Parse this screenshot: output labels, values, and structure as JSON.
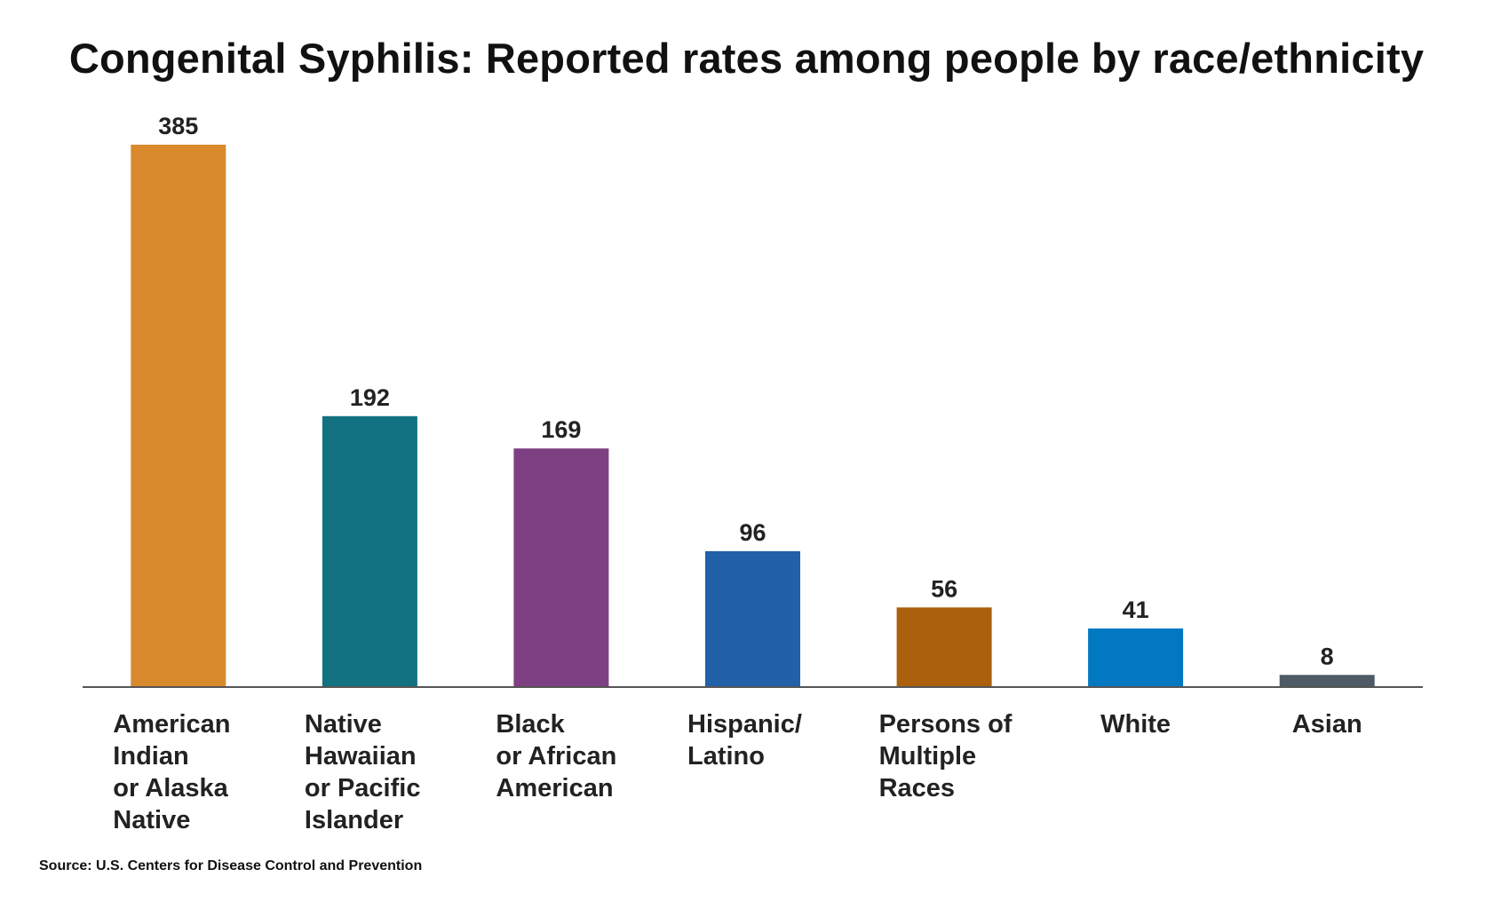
{
  "chart_data": {
    "type": "bar",
    "title": "Congenital Syphilis: Reported rates among people by race/ethnicity",
    "xlabel": "",
    "ylabel": "",
    "categories": [
      "American Indian or Alaska Native",
      "Native Hawaiian or Pacific Islander",
      "Black or African American",
      "Hispanic/ Latino",
      "Persons of Multiple Races",
      "White",
      "Asian"
    ],
    "category_lines": [
      [
        "American",
        "Indian",
        "or Alaska",
        "Native"
      ],
      [
        "Native",
        "Hawaiian",
        "or Pacific",
        "Islander"
      ],
      [
        "Black",
        "or African",
        "American"
      ],
      [
        "Hispanic/",
        "Latino"
      ],
      [
        "Persons of",
        "Multiple",
        "Races"
      ],
      [
        "White"
      ],
      [
        "Asian"
      ]
    ],
    "values": [
      385,
      192,
      169,
      96,
      56,
      41,
      8
    ],
    "colors": [
      "#D88A2C",
      "#137282",
      "#7E4082",
      "#2260A8",
      "#AA600C",
      "#0278C2",
      "#4E5A65"
    ],
    "ylim": [
      0,
      385
    ],
    "grid": false,
    "legend": "none",
    "data_labels": true
  },
  "source": "Source: U.S. Centers for Disease Control and Prevention"
}
